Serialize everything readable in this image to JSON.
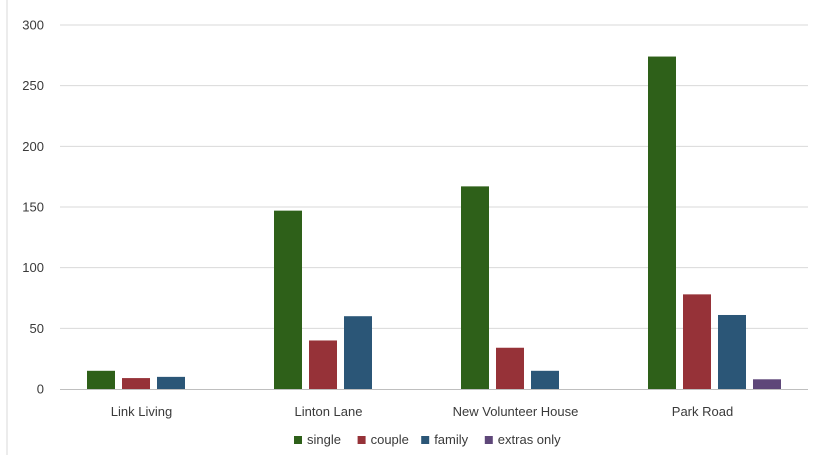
{
  "chart_data": {
    "type": "bar",
    "categories": [
      "Link Living",
      "Linton Lane",
      "New Volunteer House",
      "Park Road"
    ],
    "series": [
      {
        "name": "single",
        "color": "#2e6019",
        "values": [
          15,
          147,
          167,
          274
        ]
      },
      {
        "name": "couple",
        "color": "#963238",
        "values": [
          9,
          40,
          34,
          78
        ]
      },
      {
        "name": "family",
        "color": "#2b5677",
        "values": [
          10,
          60,
          15,
          61
        ]
      },
      {
        "name": "extras only",
        "color": "#5e4779",
        "values": [
          0,
          0,
          0,
          8
        ]
      }
    ],
    "y_ticks": [
      0,
      50,
      100,
      150,
      200,
      250,
      300
    ],
    "ylim": [
      0,
      300
    ],
    "grid": true,
    "legend_position": "bottom",
    "title": "",
    "xlabel": "",
    "ylabel": ""
  }
}
